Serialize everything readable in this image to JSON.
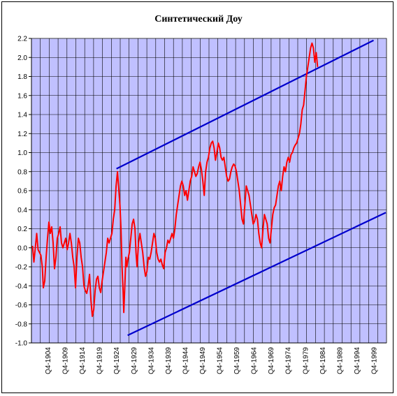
{
  "chart_data": {
    "type": "line",
    "title": "Синтетический Доу",
    "xlabel": "",
    "ylabel": "",
    "ylim": [
      -1.0,
      2.2
    ],
    "ystep": 0.2,
    "y_tick_labels": [
      "-1.0",
      "-0.8",
      "-0.6",
      "-0.4",
      "-0.2",
      "0.0",
      "0.2",
      "0.4",
      "0.6",
      "0.8",
      "1.0",
      "1.2",
      "1.4",
      "1.6",
      "1.8",
      "2.0",
      "2.2"
    ],
    "x_tick_labels": [
      "Q4-1904",
      "Q4-1909",
      "Q4-1914",
      "Q4-1919",
      "Q4-1924",
      "Q4-1929",
      "Q4-1934",
      "Q4-1939",
      "Q4-1944",
      "Q4-1949",
      "Q4-1954",
      "Q4-1959",
      "Q4-1964",
      "Q4-1969",
      "Q4-1974",
      "Q4-1979",
      "Q4-1984",
      "Q4-1989",
      "Q4-1994",
      "Q4-1999"
    ],
    "xlim": [
      1901.5,
      2003.0
    ],
    "grid": true,
    "plot_background": "#c0c0ff",
    "series": [
      {
        "color": "#ff0000",
        "points": [
          [
            1901.8,
            0.02
          ],
          [
            1902.2,
            -0.15
          ],
          [
            1902.6,
            0.0
          ],
          [
            1903.0,
            0.15
          ],
          [
            1903.4,
            -0.02
          ],
          [
            1903.8,
            -0.05
          ],
          [
            1904.2,
            -0.08
          ],
          [
            1904.6,
            -0.2
          ],
          [
            1904.9,
            -0.42
          ],
          [
            1905.3,
            -0.35
          ],
          [
            1905.7,
            -0.1
          ],
          [
            1906.1,
            0.1
          ],
          [
            1906.5,
            0.27
          ],
          [
            1906.9,
            0.15
          ],
          [
            1907.3,
            0.22
          ],
          [
            1907.7,
            0.05
          ],
          [
            1908.1,
            -0.22
          ],
          [
            1908.5,
            -0.1
          ],
          [
            1908.9,
            0.1
          ],
          [
            1909.3,
            0.15
          ],
          [
            1909.7,
            0.22
          ],
          [
            1910.1,
            0.05
          ],
          [
            1910.5,
            0.0
          ],
          [
            1910.9,
            0.05
          ],
          [
            1911.3,
            0.1
          ],
          [
            1911.7,
            -0.02
          ],
          [
            1912.1,
            0.05
          ],
          [
            1912.5,
            0.15
          ],
          [
            1912.9,
            0.05
          ],
          [
            1913.3,
            -0.1
          ],
          [
            1913.7,
            -0.2
          ],
          [
            1914.1,
            -0.42
          ],
          [
            1914.5,
            -0.1
          ],
          [
            1914.9,
            0.1
          ],
          [
            1915.3,
            0.05
          ],
          [
            1915.7,
            -0.1
          ],
          [
            1916.1,
            -0.2
          ],
          [
            1916.5,
            -0.4
          ],
          [
            1916.9,
            -0.45
          ],
          [
            1917.3,
            -0.48
          ],
          [
            1917.7,
            -0.4
          ],
          [
            1918.1,
            -0.28
          ],
          [
            1918.5,
            -0.55
          ],
          [
            1918.9,
            -0.72
          ],
          [
            1919.3,
            -0.65
          ],
          [
            1919.7,
            -0.45
          ],
          [
            1920.1,
            -0.33
          ],
          [
            1920.5,
            -0.3
          ],
          [
            1920.9,
            -0.42
          ],
          [
            1921.3,
            -0.47
          ],
          [
            1921.7,
            -0.35
          ],
          [
            1922.1,
            -0.25
          ],
          [
            1922.5,
            -0.15
          ],
          [
            1922.9,
            -0.05
          ],
          [
            1923.3,
            0.1
          ],
          [
            1923.7,
            0.05
          ],
          [
            1924.1,
            0.1
          ],
          [
            1924.5,
            0.15
          ],
          [
            1924.9,
            0.3
          ],
          [
            1925.3,
            0.4
          ],
          [
            1925.7,
            0.65
          ],
          [
            1926.1,
            0.8
          ],
          [
            1926.4,
            0.65
          ],
          [
            1926.8,
            0.45
          ],
          [
            1927.1,
            0.2
          ],
          [
            1927.4,
            -0.2
          ],
          [
            1927.7,
            -0.45
          ],
          [
            1927.9,
            -0.68
          ],
          [
            1928.2,
            -0.4
          ],
          [
            1928.5,
            -0.1
          ],
          [
            1928.8,
            -0.2
          ],
          [
            1929.1,
            -0.12
          ],
          [
            1929.5,
            -0.05
          ],
          [
            1929.9,
            0.1
          ],
          [
            1930.3,
            0.25
          ],
          [
            1930.7,
            0.3
          ],
          [
            1931.1,
            0.2
          ],
          [
            1931.4,
            -0.05
          ],
          [
            1931.7,
            -0.2
          ],
          [
            1932.1,
            0.05
          ],
          [
            1932.5,
            0.15
          ],
          [
            1932.9,
            0.05
          ],
          [
            1933.3,
            -0.05
          ],
          [
            1933.7,
            -0.2
          ],
          [
            1934.1,
            -0.3
          ],
          [
            1934.5,
            -0.25
          ],
          [
            1934.9,
            -0.1
          ],
          [
            1935.3,
            -0.12
          ],
          [
            1935.7,
            -0.05
          ],
          [
            1936.1,
            0.05
          ],
          [
            1936.5,
            0.15
          ],
          [
            1936.9,
            0.1
          ],
          [
            1937.3,
            -0.05
          ],
          [
            1937.7,
            -0.12
          ],
          [
            1938.1,
            -0.15
          ],
          [
            1938.5,
            -0.12
          ],
          [
            1938.9,
            -0.18
          ],
          [
            1939.3,
            -0.22
          ],
          [
            1939.7,
            -0.05
          ],
          [
            1940.1,
            0.0
          ],
          [
            1940.5,
            0.08
          ],
          [
            1940.9,
            0.05
          ],
          [
            1941.3,
            0.1
          ],
          [
            1941.7,
            0.15
          ],
          [
            1942.1,
            0.1
          ],
          [
            1942.5,
            0.2
          ],
          [
            1942.9,
            0.35
          ],
          [
            1943.3,
            0.45
          ],
          [
            1943.7,
            0.55
          ],
          [
            1944.1,
            0.65
          ],
          [
            1944.5,
            0.7
          ],
          [
            1944.9,
            0.65
          ],
          [
            1945.3,
            0.55
          ],
          [
            1945.7,
            0.6
          ],
          [
            1946.1,
            0.5
          ],
          [
            1946.5,
            0.6
          ],
          [
            1946.9,
            0.7
          ],
          [
            1947.3,
            0.75
          ],
          [
            1947.7,
            0.85
          ],
          [
            1948.1,
            0.8
          ],
          [
            1948.5,
            0.75
          ],
          [
            1948.9,
            0.78
          ],
          [
            1949.3,
            0.85
          ],
          [
            1949.7,
            0.9
          ],
          [
            1950.1,
            0.82
          ],
          [
            1950.5,
            0.7
          ],
          [
            1950.9,
            0.55
          ],
          [
            1951.3,
            0.8
          ],
          [
            1951.7,
            0.9
          ],
          [
            1952.1,
            0.95
          ],
          [
            1952.5,
            1.05
          ],
          [
            1952.9,
            1.1
          ],
          [
            1953.3,
            1.12
          ],
          [
            1953.7,
            1.05
          ],
          [
            1954.1,
            0.92
          ],
          [
            1954.5,
            1.0
          ],
          [
            1954.9,
            1.1
          ],
          [
            1955.3,
            1.05
          ],
          [
            1955.7,
            0.95
          ],
          [
            1956.1,
            0.92
          ],
          [
            1956.5,
            0.95
          ],
          [
            1956.9,
            0.85
          ],
          [
            1957.3,
            0.75
          ],
          [
            1957.7,
            0.7
          ],
          [
            1958.1,
            0.72
          ],
          [
            1958.5,
            0.8
          ],
          [
            1958.9,
            0.85
          ],
          [
            1959.3,
            0.88
          ],
          [
            1959.7,
            0.86
          ],
          [
            1960.1,
            0.8
          ],
          [
            1960.5,
            0.7
          ],
          [
            1960.9,
            0.6
          ],
          [
            1961.3,
            0.45
          ],
          [
            1961.7,
            0.3
          ],
          [
            1962.1,
            0.25
          ],
          [
            1962.5,
            0.45
          ],
          [
            1962.9,
            0.65
          ],
          [
            1963.3,
            0.6
          ],
          [
            1963.7,
            0.55
          ],
          [
            1964.1,
            0.45
          ],
          [
            1964.5,
            0.35
          ],
          [
            1964.9,
            0.25
          ],
          [
            1965.3,
            0.28
          ],
          [
            1965.7,
            0.35
          ],
          [
            1966.1,
            0.3
          ],
          [
            1966.5,
            0.15
          ],
          [
            1966.9,
            0.05
          ],
          [
            1967.3,
            0.0
          ],
          [
            1967.7,
            0.2
          ],
          [
            1968.1,
            0.35
          ],
          [
            1968.5,
            0.3
          ],
          [
            1968.9,
            0.25
          ],
          [
            1969.3,
            0.1
          ],
          [
            1969.7,
            0.05
          ],
          [
            1970.1,
            0.2
          ],
          [
            1970.5,
            0.35
          ],
          [
            1970.9,
            0.42
          ],
          [
            1971.3,
            0.45
          ],
          [
            1971.7,
            0.55
          ],
          [
            1972.1,
            0.65
          ],
          [
            1972.5,
            0.7
          ],
          [
            1972.9,
            0.6
          ],
          [
            1973.3,
            0.75
          ],
          [
            1973.7,
            0.85
          ],
          [
            1974.1,
            0.8
          ],
          [
            1974.5,
            0.9
          ],
          [
            1974.9,
            0.95
          ],
          [
            1975.3,
            0.9
          ],
          [
            1975.7,
            0.98
          ],
          [
            1976.1,
            1.0
          ],
          [
            1976.5,
            1.05
          ],
          [
            1976.9,
            1.08
          ],
          [
            1977.3,
            1.1
          ],
          [
            1977.7,
            1.15
          ],
          [
            1978.1,
            1.2
          ],
          [
            1978.5,
            1.3
          ],
          [
            1978.9,
            1.45
          ],
          [
            1979.3,
            1.5
          ],
          [
            1979.7,
            1.65
          ],
          [
            1980.1,
            1.8
          ],
          [
            1980.5,
            1.9
          ],
          [
            1980.9,
            2.0
          ],
          [
            1981.3,
            2.1
          ],
          [
            1981.7,
            2.15
          ],
          [
            1982.1,
            2.1
          ],
          [
            1982.5,
            1.95
          ],
          [
            1982.9,
            2.05
          ],
          [
            1983.3,
            1.9
          ]
        ]
      }
    ],
    "lines": [
      {
        "color": "#0000cc",
        "points": [
          [
            1925.8,
            0.83
          ],
          [
            1999.3,
            2.18
          ]
        ]
      },
      {
        "color": "#0000cc",
        "points": [
          [
            1929.0,
            -0.92
          ],
          [
            2002.8,
            0.37
          ]
        ]
      }
    ]
  }
}
